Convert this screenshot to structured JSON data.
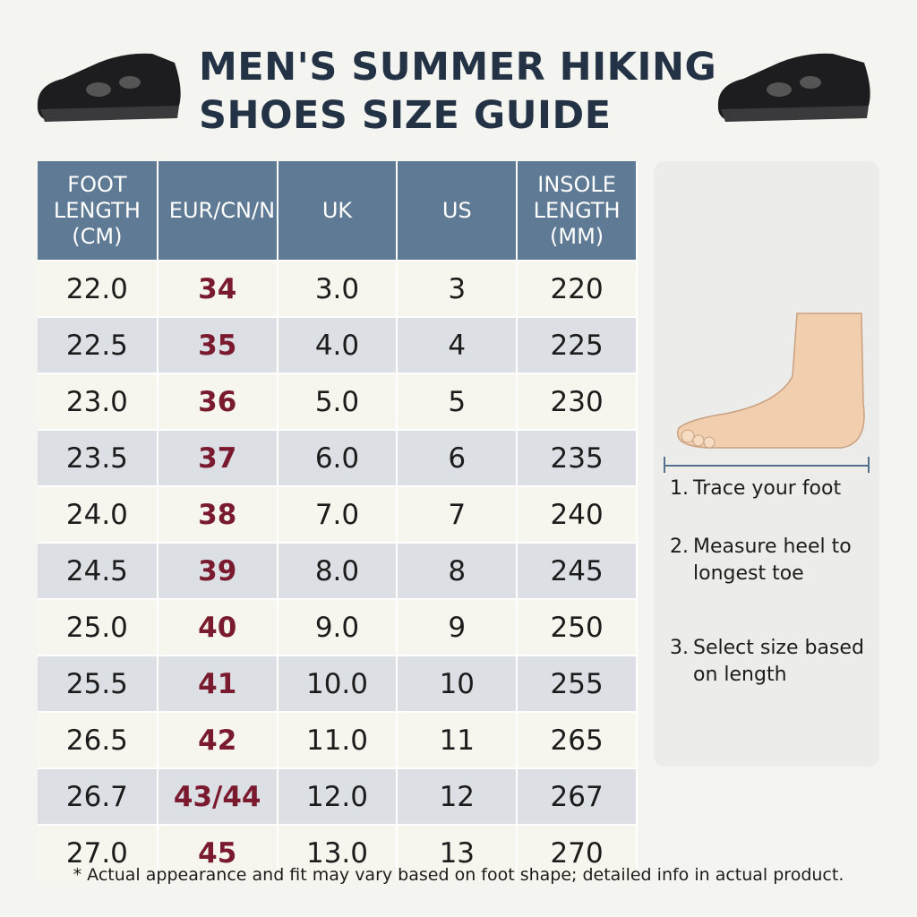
{
  "title": [
    "MEN'S SUMMER HIKING",
    "SHOES SIZE GUIDE"
  ],
  "table": {
    "headers": [
      "FOOT LENGTH (CM)",
      "EUR/CN/N",
      "UK",
      "US",
      "INSOLE LENGTH (MM)"
    ],
    "rows": [
      [
        "22.0",
        "34",
        "3.0",
        "3",
        "220"
      ],
      [
        "22.5",
        "35",
        "4.0",
        "4",
        "225"
      ],
      [
        "23.0",
        "36",
        "5.0",
        "5",
        "230"
      ],
      [
        "23.5",
        "37",
        "6.0",
        "6",
        "235"
      ],
      [
        "24.0",
        "38",
        "7.0",
        "7",
        "240"
      ],
      [
        "24.5",
        "39",
        "8.0",
        "8",
        "245"
      ],
      [
        "25.0",
        "40",
        "9.0",
        "9",
        "250"
      ],
      [
        "25.5",
        "41",
        "10.0",
        "10",
        "255"
      ],
      [
        "26.5",
        "42",
        "11.0",
        "11",
        "265"
      ],
      [
        "26.7",
        "43/44",
        "12.0",
        "12",
        "267"
      ],
      [
        "27.0",
        "45",
        "13.0",
        "13",
        "270"
      ]
    ]
  },
  "steps": [
    {
      "number": "1.",
      "text": "Trace your foot"
    },
    {
      "number": "2.",
      "text": "Measure heel to longest toe"
    },
    {
      "number": "3.",
      "text": "Select size based on length"
    }
  ],
  "footnote": "* Actual appearance and fit may vary based on foot shape; detailed info in actual product."
}
